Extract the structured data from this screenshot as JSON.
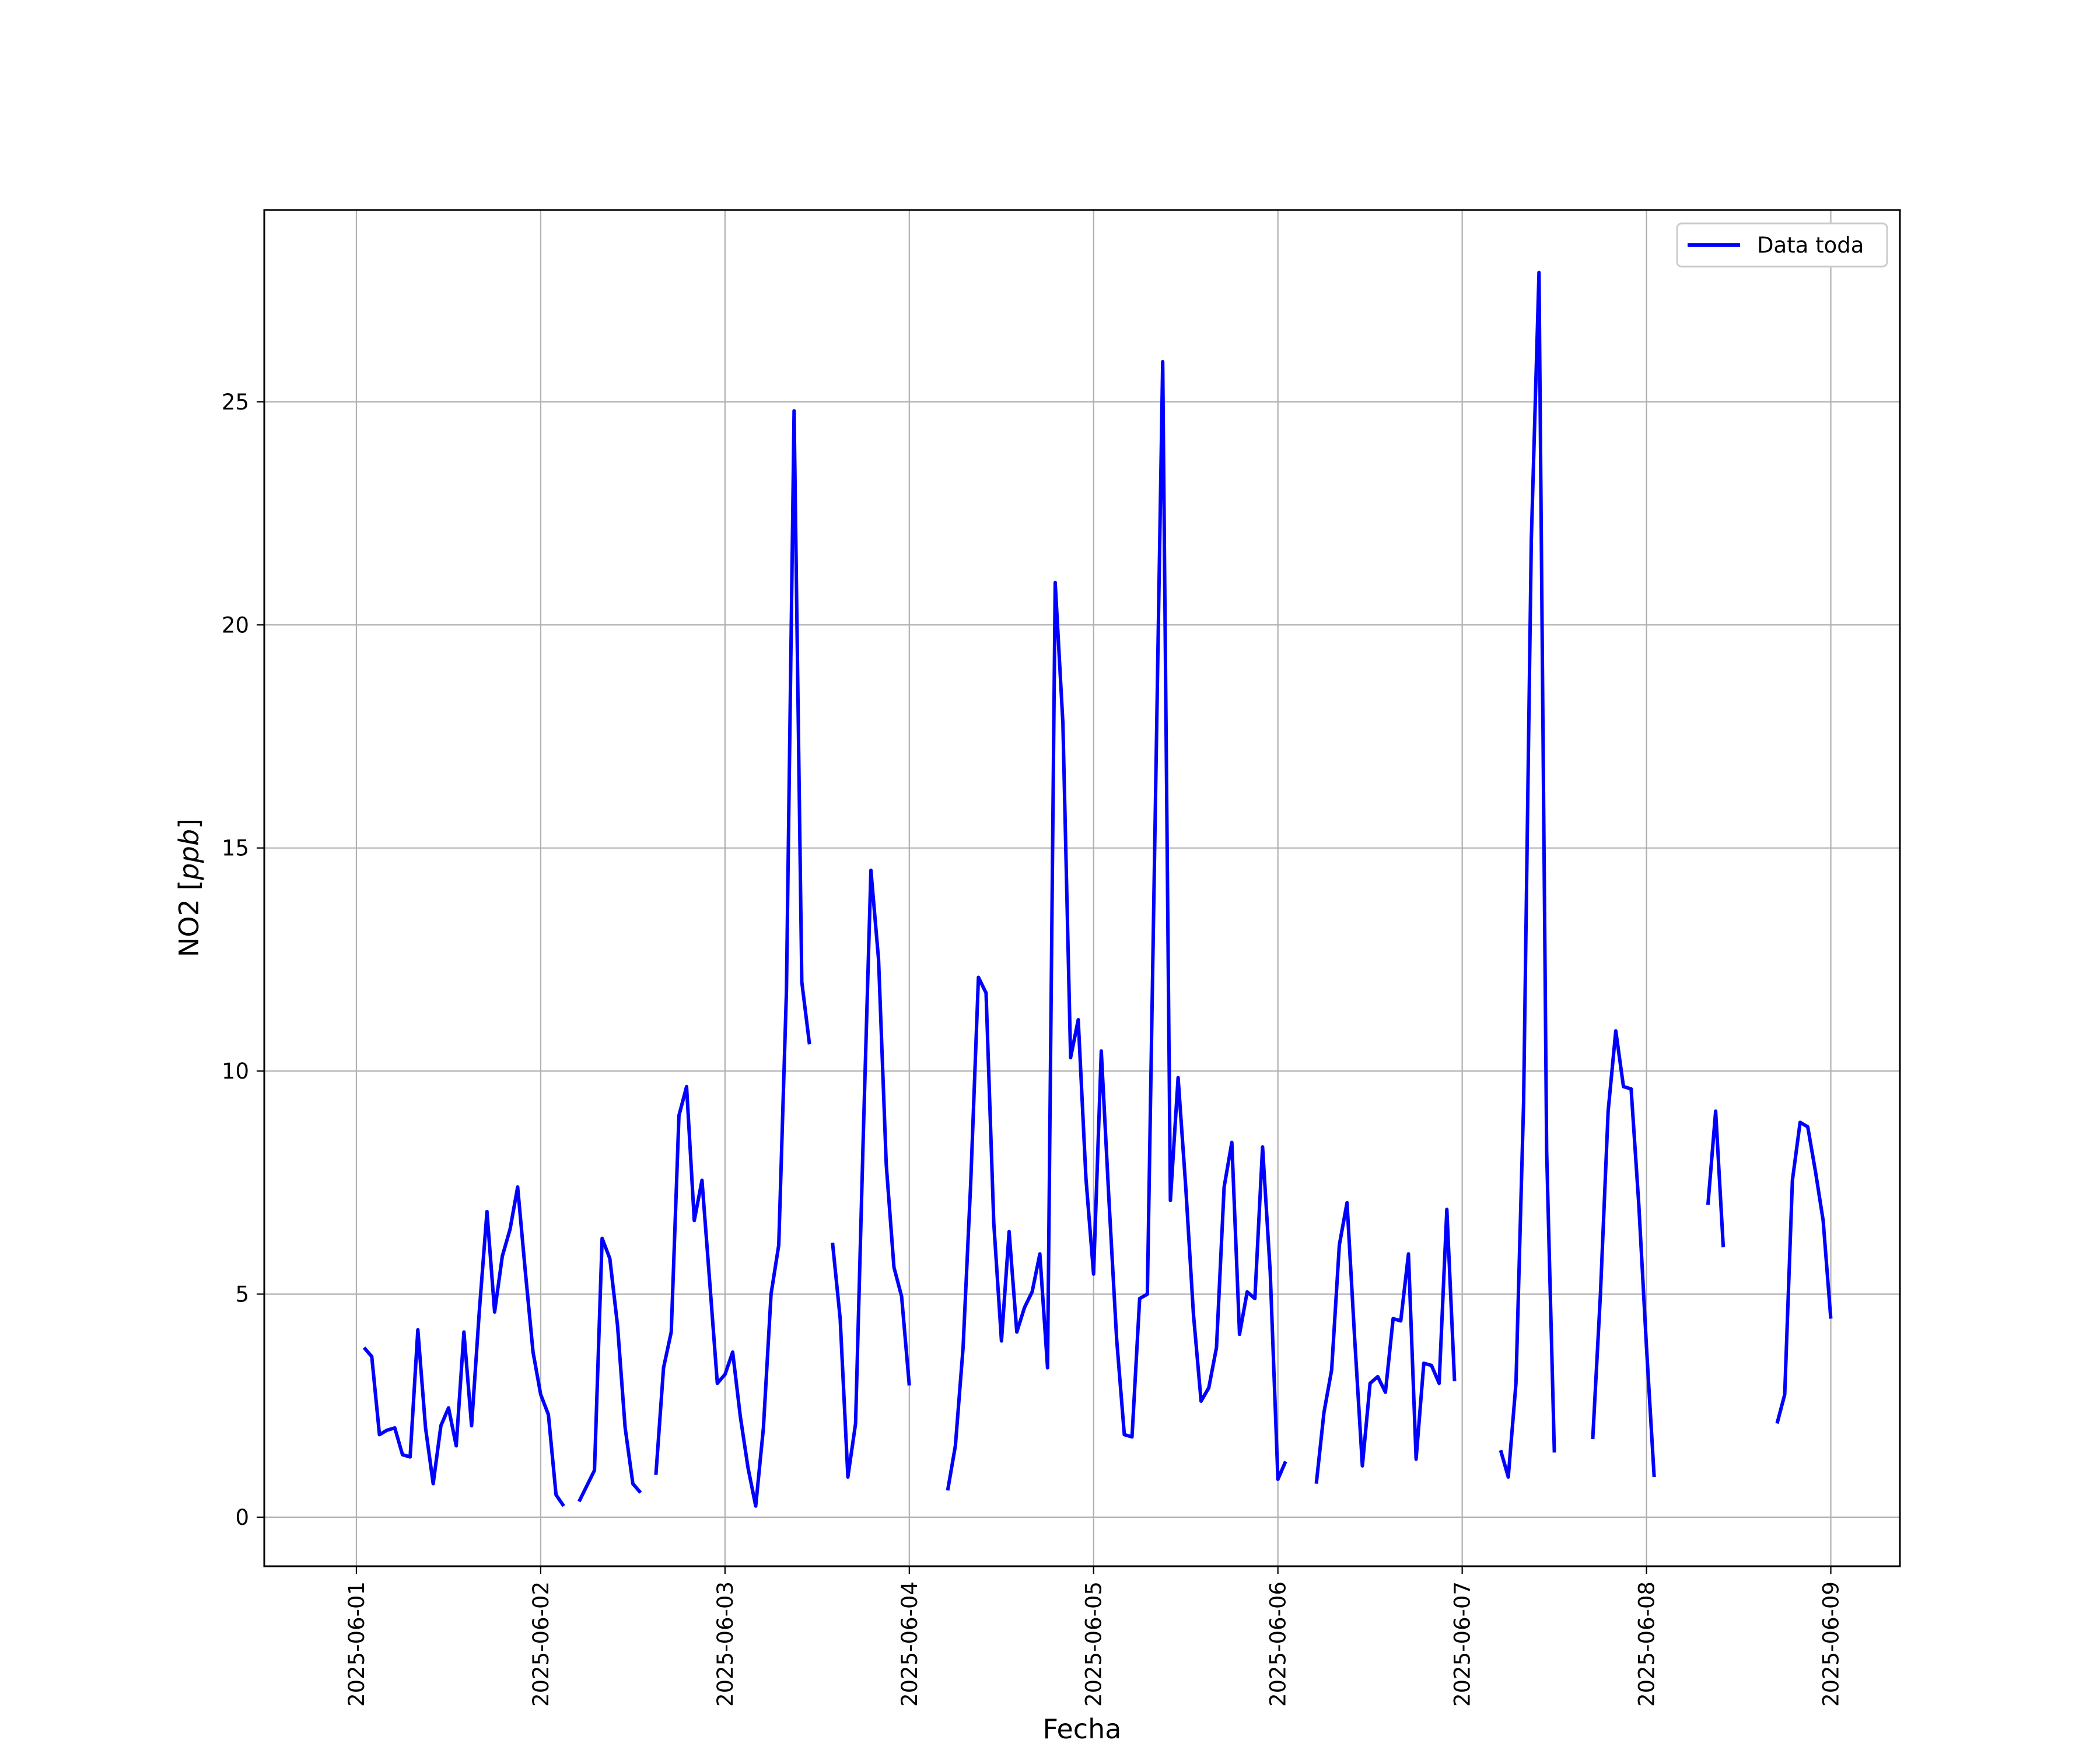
{
  "chart_data": {
    "type": "line",
    "title": "",
    "xlabel": "Fecha",
    "ylabel_prefix": "NO2 [",
    "ylabel_unit": "ppb",
    "ylabel_suffix": "]",
    "xlim": [
      "2025-05-31T12:00",
      "2025-06-09T09:00"
    ],
    "ylim": [
      -1.1,
      29.3
    ],
    "grid": true,
    "legend_position": "top-right",
    "x_ticks": [
      "2025-06-01",
      "2025-06-02",
      "2025-06-03",
      "2025-06-04",
      "2025-06-05",
      "2025-06-06",
      "2025-06-07",
      "2025-06-08",
      "2025-06-09"
    ],
    "y_ticks": [
      0,
      5,
      10,
      15,
      20,
      25
    ],
    "series": [
      {
        "name": "Data toda",
        "color": "#0000ff",
        "segments": [
          [
            [
              "2025-06-01T01:00",
              3.8
            ],
            [
              "2025-06-01T02:00",
              3.6
            ],
            [
              "2025-06-01T03:00",
              1.85
            ],
            [
              "2025-06-01T04:00",
              1.95
            ],
            [
              "2025-06-01T05:00",
              2.0
            ],
            [
              "2025-06-01T06:00",
              1.4
            ],
            [
              "2025-06-01T07:00",
              1.35
            ],
            [
              "2025-06-01T08:00",
              4.2
            ],
            [
              "2025-06-01T09:00",
              2.0
            ],
            [
              "2025-06-01T10:00",
              0.75
            ],
            [
              "2025-06-01T11:00",
              2.05
            ],
            [
              "2025-06-01T12:00",
              2.45
            ],
            [
              "2025-06-01T13:00",
              1.6
            ],
            [
              "2025-06-01T14:00",
              4.15
            ],
            [
              "2025-06-01T15:00",
              2.05
            ],
            [
              "2025-06-01T16:00",
              4.6
            ],
            [
              "2025-06-01T17:00",
              6.85
            ],
            [
              "2025-06-01T18:00",
              4.6
            ],
            [
              "2025-06-01T19:00",
              5.85
            ],
            [
              "2025-06-01T20:00",
              6.45
            ],
            [
              "2025-06-01T21:00",
              7.4
            ],
            [
              "2025-06-01T22:00",
              5.5
            ],
            [
              "2025-06-01T23:00",
              3.7
            ],
            [
              "2025-06-02T00:00",
              2.75
            ],
            [
              "2025-06-02T01:00",
              2.3
            ],
            [
              "2025-06-02T02:00",
              0.5
            ],
            [
              "2025-06-02T03:00",
              0.25
            ]
          ],
          [
            [
              "2025-06-02T05:00",
              0.35
            ],
            [
              "2025-06-02T06:00",
              0.7
            ],
            [
              "2025-06-02T07:00",
              1.05
            ],
            [
              "2025-06-02T08:00",
              6.25
            ],
            [
              "2025-06-02T09:00",
              5.8
            ],
            [
              "2025-06-02T10:00",
              4.3
            ],
            [
              "2025-06-02T11:00",
              2.0
            ],
            [
              "2025-06-02T12:00",
              0.75
            ],
            [
              "2025-06-02T13:00",
              0.55
            ]
          ],
          [
            [
              "2025-06-02T15:00",
              0.95
            ],
            [
              "2025-06-02T16:00",
              3.35
            ],
            [
              "2025-06-02T17:00",
              4.15
            ],
            [
              "2025-06-02T18:00",
              9.0
            ],
            [
              "2025-06-02T19:00",
              9.65
            ],
            [
              "2025-06-02T20:00",
              6.65
            ],
            [
              "2025-06-02T21:00",
              7.55
            ],
            [
              "2025-06-02T22:00",
              5.3
            ],
            [
              "2025-06-02T23:00",
              3.0
            ],
            [
              "2025-06-03T00:00",
              3.2
            ],
            [
              "2025-06-03T01:00",
              3.7
            ],
            [
              "2025-06-03T02:00",
              2.25
            ],
            [
              "2025-06-03T03:00",
              1.1
            ],
            [
              "2025-06-03T04:00",
              0.25
            ],
            [
              "2025-06-03T05:00",
              2.0
            ],
            [
              "2025-06-03T06:00",
              5.0
            ],
            [
              "2025-06-03T07:00",
              6.1
            ],
            [
              "2025-06-03T08:00",
              11.8
            ],
            [
              "2025-06-03T09:00",
              24.8
            ],
            [
              "2025-06-03T10:00",
              12.0
            ],
            [
              "2025-06-03T11:00",
              10.6
            ]
          ],
          [
            [
              "2025-06-03T14:00",
              6.15
            ],
            [
              "2025-06-03T15:00",
              4.45
            ],
            [
              "2025-06-03T16:00",
              0.9
            ],
            [
              "2025-06-03T17:00",
              2.1
            ],
            [
              "2025-06-03T18:00",
              8.5
            ],
            [
              "2025-06-03T19:00",
              14.5
            ],
            [
              "2025-06-03T20:00",
              12.5
            ],
            [
              "2025-06-03T21:00",
              7.9
            ],
            [
              "2025-06-03T22:00",
              5.6
            ],
            [
              "2025-06-03T23:00",
              4.95
            ],
            [
              "2025-06-04T00:00",
              2.95
            ]
          ],
          [
            [
              "2025-06-04T05:00",
              0.6
            ],
            [
              "2025-06-04T06:00",
              1.6
            ],
            [
              "2025-06-04T07:00",
              3.8
            ],
            [
              "2025-06-04T08:00",
              7.5
            ],
            [
              "2025-06-04T09:00",
              12.1
            ],
            [
              "2025-06-04T10:00",
              11.75
            ],
            [
              "2025-06-04T11:00",
              6.6
            ],
            [
              "2025-06-04T12:00",
              3.95
            ],
            [
              "2025-06-04T13:00",
              6.4
            ],
            [
              "2025-06-04T14:00",
              4.15
            ],
            [
              "2025-06-04T15:00",
              4.7
            ],
            [
              "2025-06-04T16:00",
              5.05
            ],
            [
              "2025-06-04T17:00",
              5.9
            ],
            [
              "2025-06-04T18:00",
              3.35
            ],
            [
              "2025-06-04T19:00",
              20.95
            ],
            [
              "2025-06-04T20:00",
              17.8
            ],
            [
              "2025-06-04T21:00",
              10.3
            ],
            [
              "2025-06-04T22:00",
              11.15
            ],
            [
              "2025-06-04T23:00",
              7.6
            ],
            [
              "2025-06-05T00:00",
              5.45
            ],
            [
              "2025-06-05T01:00",
              10.45
            ],
            [
              "2025-06-05T02:00",
              7.1
            ],
            [
              "2025-06-05T03:00",
              4.0
            ],
            [
              "2025-06-05T04:00",
              1.85
            ],
            [
              "2025-06-05T05:00",
              1.8
            ],
            [
              "2025-06-05T06:00",
              4.9
            ],
            [
              "2025-06-05T07:00",
              5.0
            ],
            [
              "2025-06-05T08:00",
              15.5
            ],
            [
              "2025-06-05T09:00",
              25.9
            ],
            [
              "2025-06-05T10:00",
              7.1
            ],
            [
              "2025-06-05T11:00",
              9.85
            ],
            [
              "2025-06-05T12:00",
              7.4
            ],
            [
              "2025-06-05T13:00",
              4.55
            ],
            [
              "2025-06-05T14:00",
              2.6
            ],
            [
              "2025-06-05T15:00",
              2.9
            ],
            [
              "2025-06-05T16:00",
              3.8
            ],
            [
              "2025-06-05T17:00",
              7.4
            ],
            [
              "2025-06-05T18:00",
              8.4
            ],
            [
              "2025-06-05T19:00",
              4.1
            ],
            [
              "2025-06-05T20:00",
              5.05
            ],
            [
              "2025-06-05T21:00",
              4.9
            ],
            [
              "2025-06-05T22:00",
              8.3
            ],
            [
              "2025-06-05T23:00",
              5.5
            ],
            [
              "2025-06-06T00:00",
              0.85
            ],
            [
              "2025-06-06T01:00",
              1.25
            ]
          ],
          [
            [
              "2025-06-06T05:00",
              0.75
            ],
            [
              "2025-06-06T06:00",
              2.35
            ],
            [
              "2025-06-06T07:00",
              3.3
            ],
            [
              "2025-06-06T08:00",
              6.1
            ],
            [
              "2025-06-06T09:00",
              7.05
            ],
            [
              "2025-06-06T10:00",
              4.0
            ],
            [
              "2025-06-06T11:00",
              1.15
            ],
            [
              "2025-06-06T12:00",
              3.0
            ],
            [
              "2025-06-06T13:00",
              3.15
            ],
            [
              "2025-06-06T14:00",
              2.8
            ],
            [
              "2025-06-06T15:00",
              4.45
            ],
            [
              "2025-06-06T16:00",
              4.4
            ],
            [
              "2025-06-06T17:00",
              5.9
            ],
            [
              "2025-06-06T18:00",
              1.3
            ],
            [
              "2025-06-06T19:00",
              3.45
            ],
            [
              "2025-06-06T20:00",
              3.4
            ],
            [
              "2025-06-06T21:00",
              3.0
            ],
            [
              "2025-06-06T22:00",
              6.9
            ],
            [
              "2025-06-06T23:00",
              3.05
            ]
          ],
          [
            [
              "2025-06-07T05:00",
              1.5
            ],
            [
              "2025-06-07T06:00",
              0.9
            ],
            [
              "2025-06-07T07:00",
              3.0
            ],
            [
              "2025-06-07T08:00",
              9.3
            ],
            [
              "2025-06-07T09:00",
              21.9
            ],
            [
              "2025-06-07T10:00",
              27.9
            ],
            [
              "2025-06-07T11:00",
              8.2
            ],
            [
              "2025-06-07T12:00",
              1.45
            ]
          ],
          [
            [
              "2025-06-07T17:00",
              1.75
            ],
            [
              "2025-06-07T18:00",
              5.0
            ],
            [
              "2025-06-07T19:00",
              9.1
            ],
            [
              "2025-06-07T20:00",
              10.9
            ],
            [
              "2025-06-07T21:00",
              9.65
            ],
            [
              "2025-06-07T22:00",
              9.6
            ],
            [
              "2025-06-07T23:00",
              7.0
            ],
            [
              "2025-06-08T00:00",
              3.8
            ],
            [
              "2025-06-08T01:00",
              0.9
            ]
          ],
          [
            [
              "2025-06-08T08:00",
              7.0
            ],
            [
              "2025-06-08T09:00",
              9.1
            ],
            [
              "2025-06-08T10:00",
              6.05
            ]
          ],
          [
            [
              "2025-06-08T17:00",
              2.1
            ],
            [
              "2025-06-08T18:00",
              2.75
            ],
            [
              "2025-06-08T19:00",
              7.55
            ],
            [
              "2025-06-08T20:00",
              8.85
            ],
            [
              "2025-06-08T21:00",
              8.75
            ],
            [
              "2025-06-08T22:00",
              7.75
            ],
            [
              "2025-06-08T23:00",
              6.65
            ],
            [
              "2025-06-09T00:00",
              4.45
            ]
          ]
        ]
      }
    ]
  }
}
